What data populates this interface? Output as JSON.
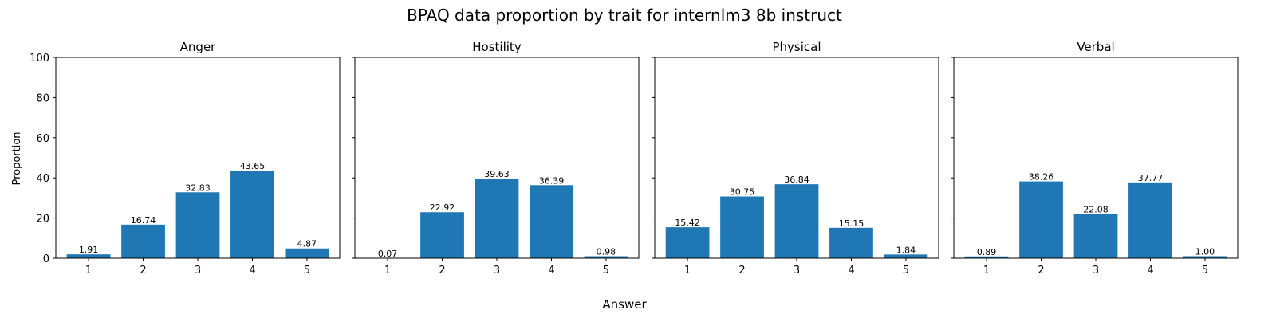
{
  "chart_data": {
    "type": "bar",
    "title": "BPAQ data proportion by trait for internlm3 8b instruct",
    "xlabel": "Answer",
    "ylabel": "Proportion",
    "ylim": [
      0,
      100
    ],
    "yticks": [
      "0",
      "20",
      "40",
      "60",
      "80",
      "100"
    ],
    "categories": [
      "1",
      "2",
      "3",
      "4",
      "5"
    ],
    "bar_color": "#1f77b4",
    "grid": false,
    "panels": [
      {
        "title": "Anger",
        "values": [
          1.91,
          16.74,
          32.83,
          43.65,
          4.87
        ],
        "value_labels": [
          "1.91",
          "16.74",
          "32.83",
          "43.65",
          "4.87"
        ]
      },
      {
        "title": "Hostility",
        "values": [
          0.07,
          22.92,
          39.63,
          36.39,
          0.98
        ],
        "value_labels": [
          "0.07",
          "22.92",
          "39.63",
          "36.39",
          "0.98"
        ]
      },
      {
        "title": "Physical",
        "values": [
          15.42,
          30.75,
          36.84,
          15.15,
          1.84
        ],
        "value_labels": [
          "15.42",
          "30.75",
          "36.84",
          "15.15",
          "1.84"
        ]
      },
      {
        "title": "Verbal",
        "values": [
          0.89,
          38.26,
          22.08,
          37.77,
          1.0
        ],
        "value_labels": [
          "0.89",
          "38.26",
          "22.08",
          "37.77",
          "1.00"
        ]
      }
    ]
  }
}
